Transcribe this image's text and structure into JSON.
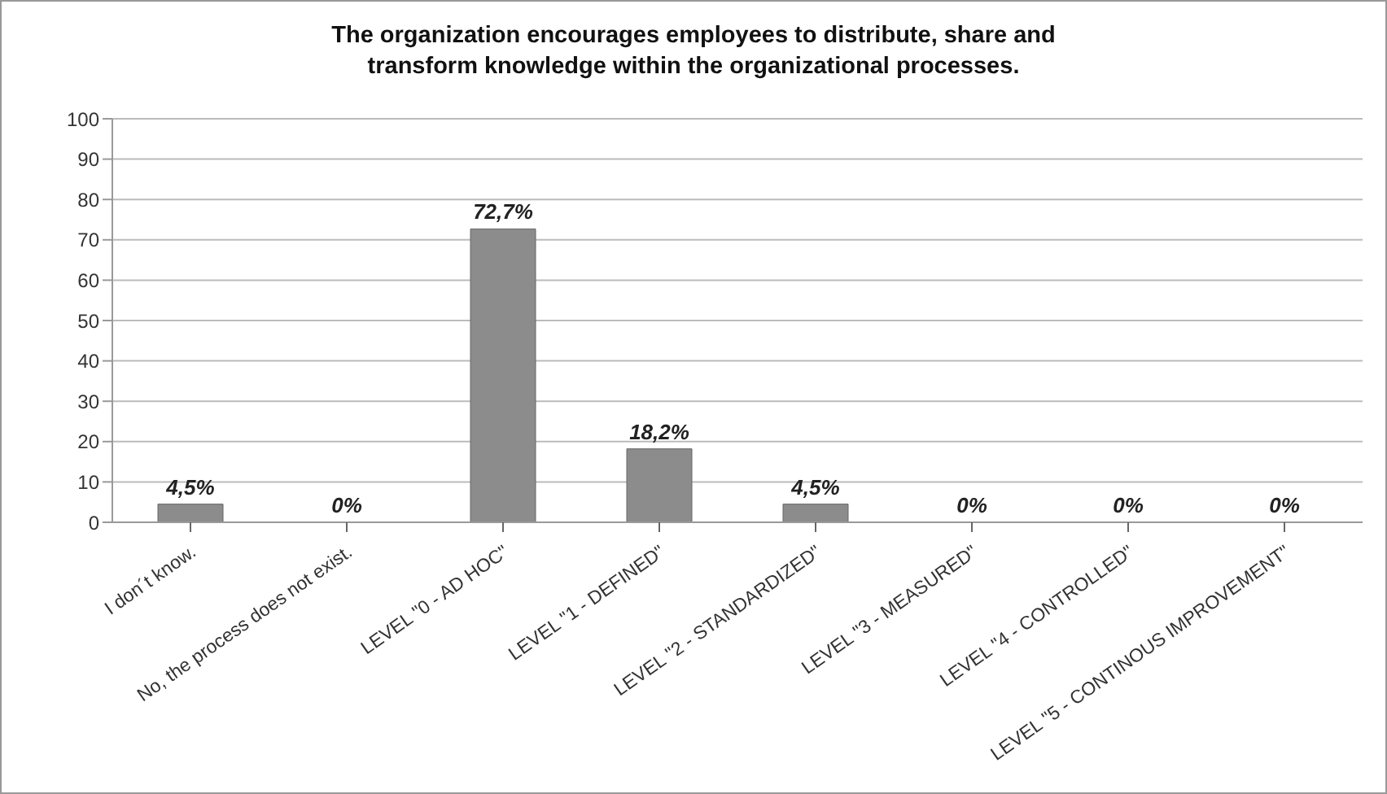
{
  "chart_data": {
    "type": "bar",
    "title": "The organization encourages employees to distribute, share and transform knowledge within the organizational processes.",
    "categories": [
      "I don´t know.",
      "No, the process does not exist.",
      "LEVEL \"0 - AD HOC\"",
      "LEVEL \"1 - DEFINED\"",
      "LEVEL \"2 - STANDARDIZED\"",
      "LEVEL \"3 - MEASURED\"",
      "LEVEL \"4 - CONTROLLED\"",
      "LEVEL \"5 - CONTINOUS IMPROVEMENT\""
    ],
    "values": [
      4.5,
      0,
      72.7,
      18.2,
      4.5,
      0,
      0,
      0
    ],
    "value_labels": [
      "4,5%",
      "0%",
      "72,7%",
      "18,2%",
      "4,5%",
      "0%",
      "0%",
      "0%"
    ],
    "color": "#8c8c8c",
    "ylim": [
      0,
      100
    ],
    "yticks": [
      0,
      10,
      20,
      30,
      40,
      50,
      60,
      70,
      80,
      90,
      100
    ],
    "grid": "y"
  }
}
